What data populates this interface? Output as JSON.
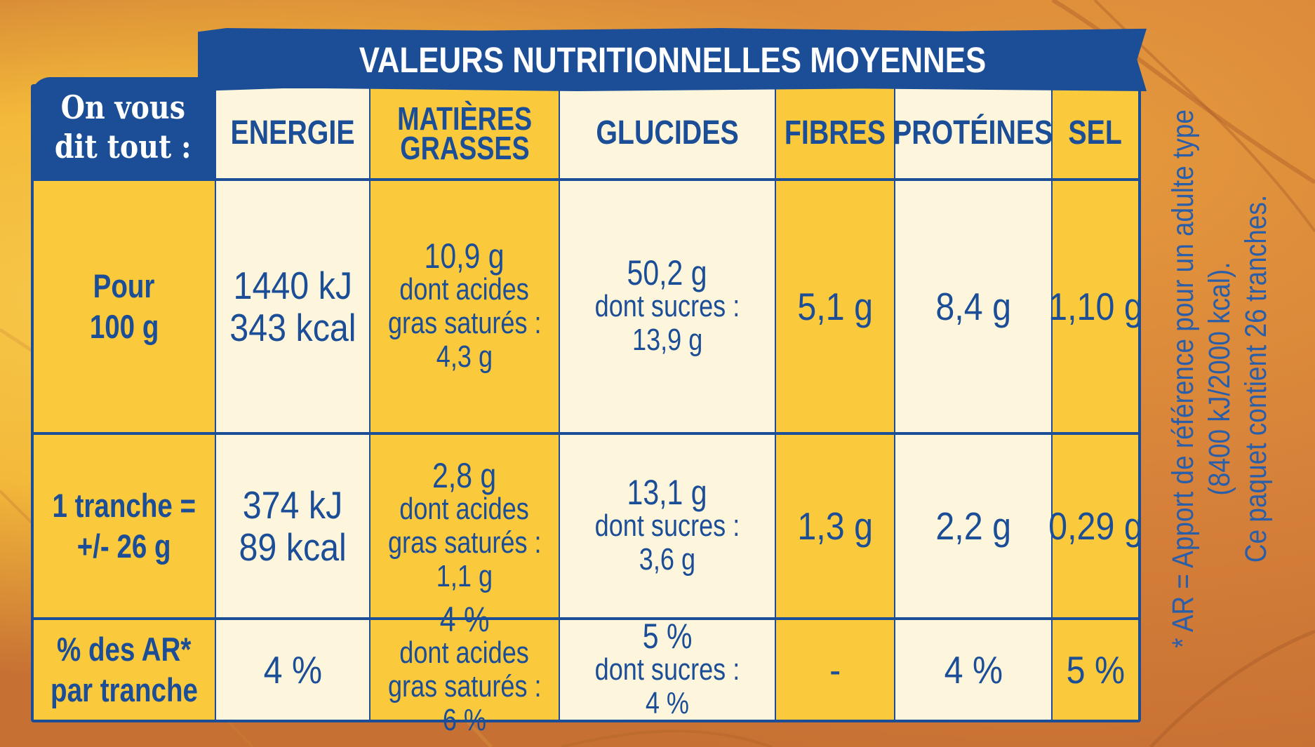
{
  "title": "VALEURS NUTRITIONNELLES MOYENNES",
  "corner_label_line1": "On vous",
  "corner_label_line2": "dit tout :",
  "columns": {
    "energie": "ENERGIE",
    "matieres_line1": "MATIÈRES",
    "matieres_line2": "GRASSES",
    "glucides": "GLUCIDES",
    "fibres": "FIBRES",
    "proteines": "PROTÉINES",
    "sel": "SEL"
  },
  "rows": [
    {
      "label_line1": "Pour",
      "label_line2": "100 g",
      "energie_kj": "1440 kJ",
      "energie_kcal": "343 kcal",
      "matieres": [
        "10,9 g",
        "dont acides",
        "gras saturés :",
        "4,3 g"
      ],
      "glucides": [
        "50,2 g",
        "dont sucres :",
        "13,9 g"
      ],
      "fibres": "5,1 g",
      "proteines": "8,4 g",
      "sel": "1,10 g"
    },
    {
      "label_line1": "1 tranche =",
      "label_line2": "+/- 26 g",
      "energie_kj": "374 kJ",
      "energie_kcal": "89 kcal",
      "matieres": [
        "2,8 g",
        "dont acides",
        "gras saturés :",
        "1,1 g"
      ],
      "glucides": [
        "13,1 g",
        "dont sucres :",
        "3,6 g"
      ],
      "fibres": "1,3 g",
      "proteines": "2,2 g",
      "sel": "0,29 g"
    },
    {
      "label_line1": "% des AR*",
      "label_line2": "par tranche",
      "energie": "4 %",
      "matieres": [
        "4 %",
        "dont acides",
        "gras saturés :",
        "6 %"
      ],
      "glucides": [
        "5 %",
        "dont sucres :",
        "4 %"
      ],
      "fibres": "-",
      "proteines": "4 %",
      "sel": "5 %"
    }
  ],
  "footnote": {
    "line1": "* AR = Apport de référence pour un adulte type",
    "line2": "(8400 kJ/2000 kcal).",
    "line3": "Ce paquet contient 26 tranches."
  },
  "colors": {
    "navy": "#1b4e97",
    "yellow": "#fbc93c",
    "cream": "#fdf6dc"
  }
}
